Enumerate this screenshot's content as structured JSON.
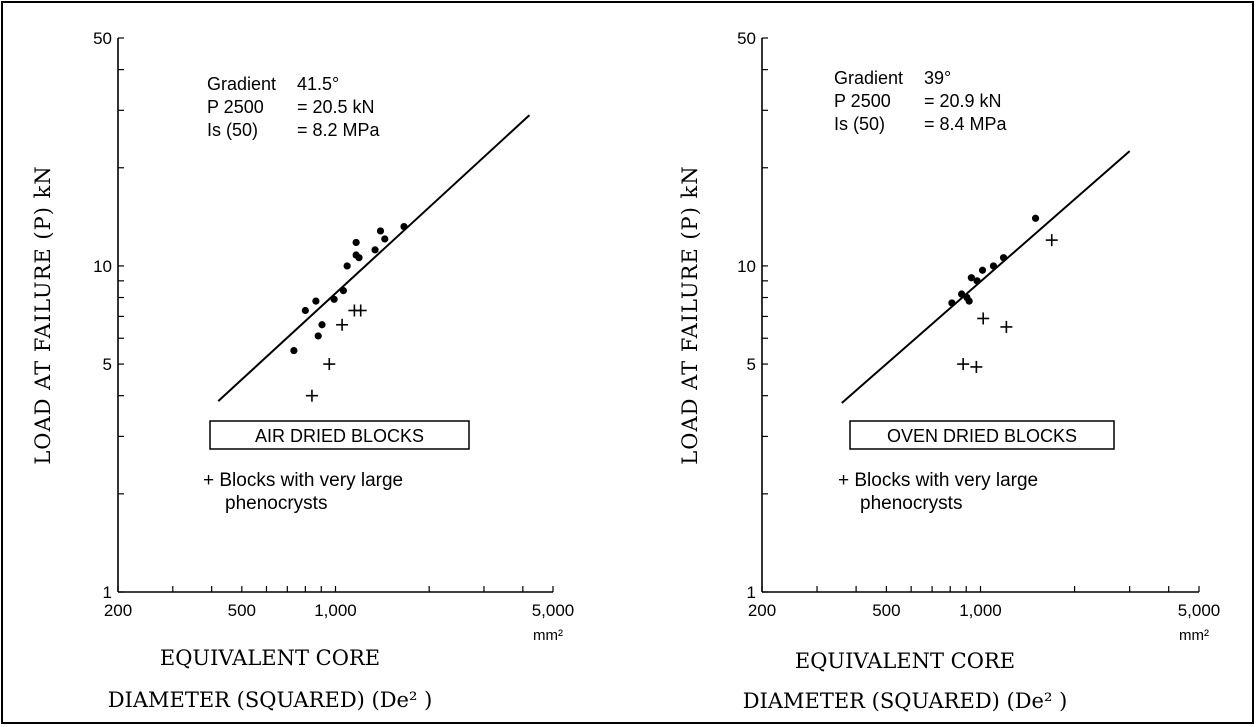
{
  "chart_data": [
    {
      "type": "scatter",
      "title": "",
      "ylabel": "LOAD AT FAILURE (P) kN",
      "xlabel_line1": "EQUIVALENT CORE",
      "xlabel_line2": "DIAMETER (SQUARED) (De² )",
      "x_unit": "mm²",
      "xscale": "log",
      "yscale": "log",
      "xlim": [
        200,
        5000
      ],
      "ylim": [
        1,
        50
      ],
      "x_ticks": [
        200,
        500,
        1000,
        5000
      ],
      "x_tick_labels": [
        "200",
        "500",
        "1,000",
        "5,000"
      ],
      "y_ticks": [
        1,
        5,
        10,
        50
      ],
      "y_tick_labels": [
        "1",
        "5",
        "10",
        "50"
      ],
      "stats": [
        {
          "label": "Gradient",
          "value": "41.5°"
        },
        {
          "label": "P 2500",
          "value": "= 20.5 kN"
        },
        {
          "label": "Is (50)",
          "value": "= 8.2 MPa"
        }
      ],
      "box_label": "AIR DRIED BLOCKS",
      "note_line1": "+ Blocks with very large",
      "note_line2": "phenocrysts",
      "fit_line": {
        "x": [
          420,
          4200
        ],
        "y": [
          3.85,
          29.0
        ]
      },
      "series": [
        {
          "marker": "dot",
          "x": [
            735,
            800,
            865,
            880,
            905,
            990,
            1060,
            1090,
            1165,
            1165,
            1190,
            1340,
            1395,
            1440,
            1660
          ],
          "y": [
            5.5,
            7.3,
            7.8,
            6.1,
            6.6,
            7.9,
            8.4,
            10.0,
            10.8,
            11.8,
            10.6,
            11.2,
            12.8,
            12.1,
            13.2
          ]
        },
        {
          "marker": "plus",
          "x": [
            840,
            955,
            1050,
            1150,
            1205
          ],
          "y": [
            4.0,
            5.0,
            6.6,
            7.3,
            7.3
          ]
        }
      ]
    },
    {
      "type": "scatter",
      "title": "",
      "ylabel": "LOAD AT FAILURE (P) kN",
      "xlabel_line1": "EQUIVALENT CORE",
      "xlabel_line2": "DIAMETER (SQUARED) (De² )",
      "x_unit": "mm²",
      "xscale": "log",
      "yscale": "log",
      "xlim": [
        200,
        5000
      ],
      "ylim": [
        1,
        50
      ],
      "x_ticks": [
        200,
        500,
        1000,
        5000
      ],
      "x_tick_labels": [
        "200",
        "500",
        "1,000",
        "5,000"
      ],
      "y_ticks": [
        1,
        5,
        10,
        50
      ],
      "y_tick_labels": [
        "1",
        "5",
        "10",
        "50"
      ],
      "stats": [
        {
          "label": "Gradient",
          "value": "39°"
        },
        {
          "label": "P 2500",
          "value": "= 20.9 kN"
        },
        {
          "label": "Is (50)",
          "value": "= 8.4 MPa"
        }
      ],
      "box_label": "OVEN DRIED BLOCKS",
      "note_line1": "+ Blocks with very large",
      "note_line2": "phenocrysts",
      "fit_line": {
        "x": [
          360,
          3000
        ],
        "y": [
          3.8,
          22.5
        ]
      },
      "series": [
        {
          "marker": "dot",
          "x": [
            810,
            870,
            905,
            920,
            935,
            975,
            1015,
            1100,
            1185,
            1500
          ],
          "y": [
            7.7,
            8.2,
            8.0,
            7.8,
            9.2,
            9.0,
            9.7,
            10.0,
            10.6,
            14.0
          ]
        },
        {
          "marker": "plus",
          "x": [
            1690,
            1020,
            1210,
            880,
            970
          ],
          "y": [
            12.0,
            6.9,
            6.5,
            5.0,
            4.9
          ]
        }
      ]
    }
  ]
}
